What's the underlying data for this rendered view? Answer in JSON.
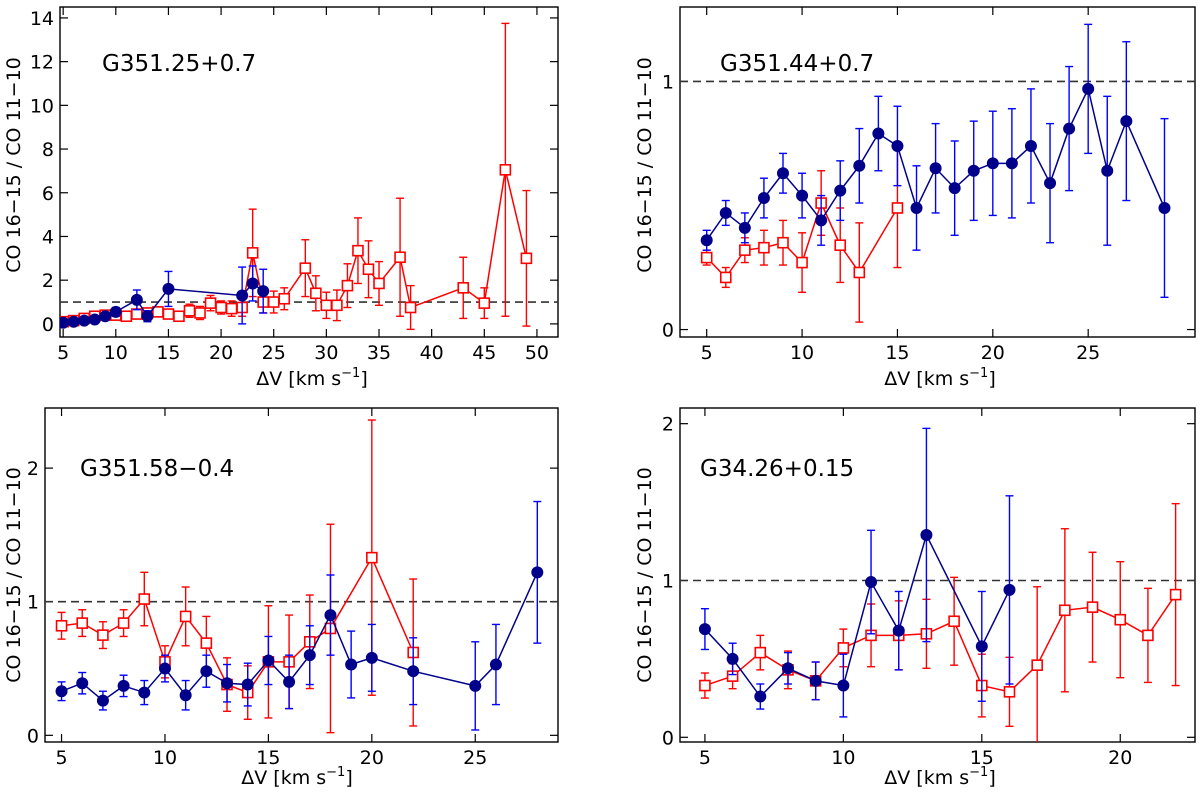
{
  "colors": {
    "blue": "#00008b",
    "blue_err": "#0000ff",
    "red": "#ff0000",
    "ref": "#333333"
  },
  "chart_data": [
    {
      "type": "line",
      "title": "G351.25+0.7",
      "ylabel": "CO 16−15 / CO 11−10",
      "xlabel_prefix": "ΔV [km s",
      "xlabel_sup": "−1",
      "xlabel_suffix": "]",
      "xlim": [
        4.7,
        52
      ],
      "ylim": [
        -0.6,
        14.5
      ],
      "xticks": [
        5,
        10,
        15,
        20,
        25,
        30,
        35,
        40,
        45,
        50
      ],
      "xtick_labels": [
        "5",
        "10",
        "15",
        "20",
        "25",
        "30",
        "35",
        "40",
        "45",
        "50"
      ],
      "yticks": [
        0,
        2,
        4,
        6,
        8,
        10,
        12,
        14
      ],
      "ytick_labels": [
        "0",
        "2",
        "4",
        "6",
        "8",
        "10",
        "12",
        "14"
      ],
      "ref_line": 1,
      "series": [
        {
          "name": "blue",
          "marker": "circle",
          "x": [
            5,
            6,
            7,
            8,
            9,
            10,
            12,
            13,
            15,
            22,
            23,
            24
          ],
          "y": [
            0.05,
            0.1,
            0.15,
            0.2,
            0.35,
            0.55,
            1.1,
            0.35,
            1.6,
            1.3,
            1.85,
            1.5
          ],
          "yerr": [
            0.1,
            0.1,
            0.1,
            0.1,
            0.15,
            0.2,
            0.45,
            0.25,
            0.8,
            1.3,
            0.8,
            1.0
          ]
        },
        {
          "name": "red",
          "marker": "square",
          "x": [
            5,
            6,
            7,
            8,
            9,
            10,
            11,
            12,
            13,
            14,
            15,
            16,
            17,
            18,
            19,
            20,
            21,
            22,
            23,
            24,
            25,
            26,
            28,
            29,
            30,
            31,
            32,
            33,
            34,
            35,
            37,
            38,
            43,
            45,
            47,
            49
          ],
          "y": [
            0.1,
            0.15,
            0.25,
            0.35,
            0.4,
            0.4,
            0.35,
            0.45,
            0.5,
            0.55,
            0.45,
            0.35,
            0.6,
            0.5,
            0.95,
            0.75,
            0.7,
            0.75,
            3.25,
            1.0,
            1.0,
            1.15,
            2.55,
            1.4,
            0.85,
            0.85,
            1.75,
            3.35,
            2.5,
            1.85,
            3.05,
            0.75,
            1.65,
            0.95,
            7.05,
            3.0
          ],
          "yerr": [
            0.1,
            0.1,
            0.15,
            0.15,
            0.15,
            0.15,
            0.15,
            0.2,
            0.2,
            0.2,
            0.2,
            0.2,
            0.3,
            0.3,
            0.35,
            0.3,
            0.35,
            0.4,
            2.0,
            0.5,
            0.5,
            0.5,
            1.3,
            0.8,
            0.6,
            0.7,
            1.0,
            1.5,
            1.3,
            1.0,
            2.7,
            1.0,
            1.4,
            0.7,
            6.7,
            3.1
          ]
        }
      ]
    },
    {
      "type": "line",
      "title": "G351.44+0.7",
      "ylabel": "CO 16−15 / CO 11−10",
      "xlabel_prefix": "ΔV [km s",
      "xlabel_sup": "−1",
      "xlabel_suffix": "]",
      "xlim": [
        3.6,
        30.6
      ],
      "ylim": [
        -0.03,
        1.3
      ],
      "xticks": [
        5,
        10,
        15,
        20,
        25
      ],
      "xtick_labels": [
        "5",
        "10",
        "15",
        "20",
        "25"
      ],
      "yticks": [
        0,
        1
      ],
      "ytick_labels": [
        "0",
        "1"
      ],
      "ref_line": 1,
      "series": [
        {
          "name": "blue",
          "marker": "circle",
          "x": [
            5,
            6,
            7,
            8,
            9,
            10,
            11,
            12,
            13,
            14,
            15,
            16,
            17,
            18,
            19,
            20,
            21,
            22,
            23,
            24,
            25,
            26,
            27,
            29
          ],
          "y": [
            0.36,
            0.47,
            0.41,
            0.53,
            0.63,
            0.54,
            0.44,
            0.56,
            0.66,
            0.79,
            0.74,
            0.49,
            0.65,
            0.57,
            0.64,
            0.67,
            0.67,
            0.74,
            0.59,
            0.81,
            0.97,
            0.64,
            0.84,
            0.49
          ],
          "yerr": [
            0.04,
            0.05,
            0.06,
            0.08,
            0.08,
            0.09,
            0.1,
            0.12,
            0.15,
            0.15,
            0.16,
            0.17,
            0.18,
            0.19,
            0.2,
            0.21,
            0.22,
            0.23,
            0.24,
            0.25,
            0.26,
            0.3,
            0.32,
            0.36
          ]
        },
        {
          "name": "red",
          "marker": "square",
          "x": [
            5,
            6,
            7,
            8,
            9,
            10,
            11,
            12,
            13,
            15
          ],
          "y": [
            0.29,
            0.21,
            0.32,
            0.33,
            0.35,
            0.27,
            0.51,
            0.34,
            0.23,
            0.49
          ],
          "yerr": [
            0.03,
            0.04,
            0.05,
            0.07,
            0.09,
            0.12,
            0.13,
            0.15,
            0.2,
            0.24
          ]
        }
      ]
    },
    {
      "type": "line",
      "title": "G351.58−0.4",
      "ylabel": "CO 16−15 / CO 11−10",
      "xlabel_prefix": "ΔV [km s",
      "xlabel_sup": "−1",
      "xlabel_suffix": "]",
      "xlim": [
        4.2,
        29
      ],
      "ylim": [
        -0.05,
        2.45
      ],
      "xticks": [
        5,
        10,
        15,
        20,
        25
      ],
      "xtick_labels": [
        "5",
        "10",
        "15",
        "20",
        "25"
      ],
      "yticks": [
        0,
        1,
        2
      ],
      "ytick_labels": [
        "0",
        "1",
        "2"
      ],
      "ref_line": 1,
      "series": [
        {
          "name": "blue",
          "marker": "circle",
          "x": [
            5,
            6,
            7,
            8,
            9,
            10,
            11,
            12,
            13,
            14,
            15,
            16,
            17,
            18,
            19,
            20,
            22,
            25,
            26,
            28
          ],
          "y": [
            0.33,
            0.39,
            0.26,
            0.37,
            0.32,
            0.5,
            0.3,
            0.48,
            0.39,
            0.38,
            0.56,
            0.4,
            0.6,
            0.9,
            0.53,
            0.58,
            0.48,
            0.37,
            0.53,
            1.22
          ],
          "yerr": [
            0.07,
            0.08,
            0.07,
            0.08,
            0.09,
            0.1,
            0.11,
            0.12,
            0.14,
            0.16,
            0.18,
            0.2,
            0.22,
            0.3,
            0.25,
            0.25,
            0.25,
            0.33,
            0.3,
            0.53
          ]
        },
        {
          "name": "red",
          "marker": "square",
          "x": [
            5,
            6,
            7,
            8,
            9,
            10,
            11,
            12,
            13,
            14,
            15,
            16,
            17,
            18,
            20,
            22
          ],
          "y": [
            0.82,
            0.84,
            0.75,
            0.84,
            1.02,
            0.55,
            0.89,
            0.69,
            0.38,
            0.32,
            0.55,
            0.55,
            0.7,
            0.8,
            1.33,
            0.62
          ],
          "yerr": [
            0.1,
            0.1,
            0.1,
            0.1,
            0.2,
            0.12,
            0.22,
            0.2,
            0.2,
            0.2,
            0.42,
            0.35,
            0.35,
            0.78,
            1.03,
            0.55
          ]
        }
      ]
    },
    {
      "type": "line",
      "title": "G34.26+0.15",
      "ylabel": "CO 16−15 / CO 11−10",
      "xlabel_prefix": "ΔV [km s",
      "xlabel_sup": "−1",
      "xlabel_suffix": "]",
      "xlim": [
        4.1,
        22.7
      ],
      "ylim": [
        -0.03,
        2.1
      ],
      "xticks": [
        5,
        10,
        15,
        20
      ],
      "xtick_labels": [
        "5",
        "10",
        "15",
        "20"
      ],
      "yticks": [
        0,
        1,
        2
      ],
      "ytick_labels": [
        "0",
        "1",
        "2"
      ],
      "ref_line": 1,
      "series": [
        {
          "name": "blue",
          "marker": "circle",
          "x": [
            5,
            6,
            7,
            8,
            9,
            10,
            11,
            12,
            13,
            15,
            16
          ],
          "y": [
            0.69,
            0.5,
            0.26,
            0.44,
            0.36,
            0.33,
            0.99,
            0.68,
            1.29,
            0.58,
            0.94
          ],
          "yerr": [
            0.13,
            0.1,
            0.08,
            0.1,
            0.12,
            0.2,
            0.33,
            0.25,
            0.68,
            0.35,
            0.6
          ]
        },
        {
          "name": "red",
          "marker": "square",
          "x": [
            5,
            6,
            7,
            8,
            9,
            10,
            11,
            12,
            13,
            14,
            15,
            16,
            17,
            18,
            19,
            20,
            21,
            22
          ],
          "y": [
            0.33,
            0.39,
            0.54,
            0.43,
            0.36,
            0.57,
            0.65,
            0.65,
            0.66,
            0.74,
            0.33,
            0.29,
            0.46,
            0.81,
            0.83,
            0.75,
            0.65,
            0.91
          ],
          "yerr": [
            0.08,
            0.08,
            0.11,
            0.12,
            0.12,
            0.12,
            0.2,
            0.22,
            0.22,
            0.28,
            0.2,
            0.22,
            0.5,
            0.52,
            0.35,
            0.37,
            0.3,
            0.58
          ]
        }
      ]
    }
  ]
}
